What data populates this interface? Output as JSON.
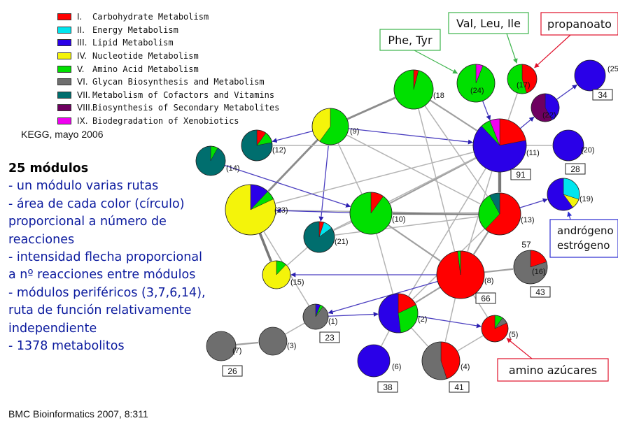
{
  "legend": [
    {
      "num": "I.",
      "label": "Carbohydrate Metabolism",
      "color": "#ff0000"
    },
    {
      "num": "II.",
      "label": "Energy Metabolism",
      "color": "#00e5ee"
    },
    {
      "num": "III.",
      "label": "Lipid Metabolism",
      "color": "#2a00e8"
    },
    {
      "num": "IV.",
      "label": "Nucleotide Metabolism",
      "color": "#f4f40a"
    },
    {
      "num": "V.",
      "label": "Amino Acid Metabolism",
      "color": "#00e000"
    },
    {
      "num": "VI.",
      "label": "Glycan Biosynthesis and Metabolism",
      "color": "#6e6e6e"
    },
    {
      "num": "VII.",
      "label": "Metabolism of Cofactors and Vitamins",
      "color": "#006e6e"
    },
    {
      "num": "VIII.",
      "label": "Biosynthesis of Secondary Metabolites",
      "color": "#6e0060"
    },
    {
      "num": "IX.",
      "label": "Biodegradation of Xenobiotics",
      "color": "#f000f0"
    }
  ],
  "source_note": "KEGG, mayo 2006",
  "summary_title": "25 módulos",
  "summary_lines": [
    "- un módulo varias rutas",
    "- área de cada color (círculo)",
    "proporcional a número de",
    "reacciones",
    "- intensidad flecha proporcional",
    "a nº reacciones entre módulos",
    "- módulos periféricos (3,7,6,14),",
    "ruta de función relativamente",
    "independiente",
    "- 1378 metabolitos"
  ],
  "citation": "BMC Bioinformatics 2007, 8:311",
  "nodes": [
    {
      "id": "25",
      "label": "(25",
      "count": "34",
      "slices": [
        [
          "III",
          100
        ]
      ]
    },
    {
      "id": "24",
      "label": "(24)",
      "count": "",
      "slices": [
        [
          "IX",
          6
        ],
        [
          "V",
          94
        ]
      ]
    },
    {
      "id": "17",
      "label": "(17)",
      "count": "",
      "slices": [
        [
          "I",
          45
        ],
        [
          "V",
          55
        ]
      ]
    },
    {
      "id": "22",
      "label": "(22)",
      "count": "",
      "slices": [
        [
          "III",
          42
        ],
        [
          "VIII",
          58
        ]
      ]
    },
    {
      "id": "18",
      "label": "(18",
      "count": "",
      "slices": [
        [
          "I",
          4
        ],
        [
          "V",
          96
        ]
      ]
    },
    {
      "id": "9",
      "label": "(9)",
      "count": "",
      "slices": [
        [
          "V",
          60
        ],
        [
          "IV",
          40
        ]
      ]
    },
    {
      "id": "11",
      "label": "(11)",
      "count": "91",
      "slices": [
        [
          "I",
          22
        ],
        [
          "III",
          66
        ],
        [
          "V",
          6
        ],
        [
          "IX",
          6
        ]
      ]
    },
    {
      "id": "20",
      "label": "(20)",
      "count": "28",
      "slices": [
        [
          "III",
          100
        ]
      ]
    },
    {
      "id": "12",
      "label": "(12)",
      "count": "",
      "slices": [
        [
          "I",
          10
        ],
        [
          "V",
          12
        ],
        [
          "VII",
          78
        ]
      ]
    },
    {
      "id": "14",
      "label": "(14)",
      "count": "",
      "slices": [
        [
          "V",
          8
        ],
        [
          "VII",
          92
        ]
      ]
    },
    {
      "id": "19",
      "label": "(19)",
      "count": "",
      "slices": [
        [
          "II",
          30
        ],
        [
          "IV",
          10
        ],
        [
          "III",
          60
        ]
      ]
    },
    {
      "id": "23",
      "label": "(23)",
      "count": "",
      "slices": [
        [
          "III",
          12
        ],
        [
          "V",
          6
        ],
        [
          "IV",
          82
        ]
      ]
    },
    {
      "id": "10",
      "label": "(10)",
      "count": "",
      "slices": [
        [
          "I",
          10
        ],
        [
          "V",
          90
        ]
      ]
    },
    {
      "id": "13",
      "label": "(13)",
      "count": "",
      "slices": [
        [
          "I",
          62
        ],
        [
          "V",
          30
        ],
        [
          "VII",
          8
        ]
      ]
    },
    {
      "id": "21",
      "label": "(21)",
      "count": "",
      "slices": [
        [
          "I",
          5
        ],
        [
          "II",
          10
        ],
        [
          "VII",
          85
        ]
      ]
    },
    {
      "id": "15",
      "label": "(15)",
      "count": "",
      "slices": [
        [
          "V",
          12
        ],
        [
          "IV",
          88
        ]
      ]
    },
    {
      "id": "8",
      "label": "(8)",
      "count": "66",
      "slices": [
        [
          "I",
          98
        ],
        [
          "V",
          2
        ]
      ]
    },
    {
      "id": "16",
      "label": "(16)",
      "count": "43",
      "top_count": "57",
      "slices": [
        [
          "I",
          20
        ],
        [
          "VI",
          80
        ]
      ]
    },
    {
      "id": "1",
      "label": "(1)",
      "count": "23",
      "slices": [
        [
          "III",
          6
        ],
        [
          "V",
          4
        ],
        [
          "VI",
          90
        ]
      ]
    },
    {
      "id": "2",
      "label": "(2)",
      "count": "",
      "slices": [
        [
          "I",
          18
        ],
        [
          "V",
          30
        ],
        [
          "III",
          52
        ]
      ]
    },
    {
      "id": "5",
      "label": "(5)",
      "count": "",
      "slices": [
        [
          "V",
          10
        ],
        [
          "VI",
          8
        ],
        [
          "I",
          82
        ]
      ]
    },
    {
      "id": "3",
      "label": "(3)",
      "count": "",
      "slices": [
        [
          "VI",
          100
        ]
      ]
    },
    {
      "id": "7",
      "label": "(7)",
      "count": "26",
      "slices": [
        [
          "VI",
          100
        ]
      ]
    },
    {
      "id": "6",
      "label": "(6)",
      "count": "38",
      "slices": [
        [
          "III",
          100
        ]
      ]
    },
    {
      "id": "4",
      "label": "(4)",
      "count": "41",
      "slices": [
        [
          "I",
          45
        ],
        [
          "VI",
          55
        ]
      ]
    }
  ],
  "edges": [
    {
      "from": "9",
      "to": "11",
      "weight": 2,
      "arrow": true
    },
    {
      "from": "9",
      "to": "18",
      "weight": 3,
      "arrow": false
    },
    {
      "from": "9",
      "to": "12",
      "weight": 2,
      "arrow": true
    },
    {
      "from": "9",
      "to": "23",
      "weight": 3,
      "arrow": false
    },
    {
      "from": "9",
      "to": "21",
      "weight": 2,
      "arrow": true
    },
    {
      "from": "9",
      "to": "10",
      "weight": 1,
      "arrow": false
    },
    {
      "from": "9",
      "to": "13",
      "weight": 1,
      "arrow": false
    },
    {
      "from": "18",
      "to": "11",
      "weight": 2,
      "arrow": false
    },
    {
      "from": "18",
      "to": "13",
      "weight": 1,
      "arrow": false
    },
    {
      "from": "18",
      "to": "8",
      "weight": 1,
      "arrow": false
    },
    {
      "from": "24",
      "to": "11",
      "weight": 2,
      "arrow": true
    },
    {
      "from": "17",
      "to": "11",
      "weight": 1,
      "arrow": false
    },
    {
      "from": "22",
      "to": "25",
      "weight": 1,
      "arrow": true
    },
    {
      "from": "11",
      "to": "22",
      "weight": 1,
      "arrow": true
    },
    {
      "from": "11",
      "to": "20",
      "weight": 1,
      "arrow": false
    },
    {
      "from": "11",
      "to": "13",
      "weight": 5,
      "arrow": false
    },
    {
      "from": "11",
      "to": "10",
      "weight": 2,
      "arrow": false
    },
    {
      "from": "11",
      "to": "12",
      "weight": 1,
      "arrow": false
    },
    {
      "from": "11",
      "to": "23",
      "weight": 1,
      "arrow": false
    },
    {
      "from": "11",
      "to": "21",
      "weight": 1,
      "arrow": false
    },
    {
      "from": "11",
      "to": "8",
      "weight": 1,
      "arrow": false
    },
    {
      "from": "11",
      "to": "2",
      "weight": 1,
      "arrow": false
    },
    {
      "from": "14",
      "to": "10",
      "weight": 2,
      "arrow": true
    },
    {
      "from": "13",
      "to": "19",
      "weight": 1,
      "arrow": true
    },
    {
      "from": "13",
      "to": "10",
      "weight": 4,
      "arrow": false
    },
    {
      "from": "13",
      "to": "8",
      "weight": 2,
      "arrow": false
    },
    {
      "from": "13",
      "to": "21",
      "weight": 1,
      "arrow": false
    },
    {
      "from": "13",
      "to": "23",
      "weight": 1,
      "arrow": false
    },
    {
      "from": "13",
      "to": "2",
      "weight": 1,
      "arrow": false
    },
    {
      "from": "10",
      "to": "23",
      "weight": 2,
      "arrow": true
    },
    {
      "from": "10",
      "to": "21",
      "weight": 1,
      "arrow": false
    },
    {
      "from": "10",
      "to": "8",
      "weight": 2,
      "arrow": false
    },
    {
      "from": "10",
      "to": "2",
      "weight": 1,
      "arrow": false
    },
    {
      "from": "23",
      "to": "15",
      "weight": 4,
      "arrow": false
    },
    {
      "from": "8",
      "to": "15",
      "weight": 2,
      "arrow": true
    },
    {
      "from": "8",
      "to": "16",
      "weight": 2,
      "arrow": false
    },
    {
      "from": "8",
      "to": "1",
      "weight": 1,
      "arrow": true
    },
    {
      "from": "8",
      "to": "2",
      "weight": 2,
      "arrow": false
    },
    {
      "from": "8",
      "to": "5",
      "weight": 1,
      "arrow": false
    },
    {
      "from": "8",
      "to": "4",
      "weight": 1,
      "arrow": false
    },
    {
      "from": "1",
      "to": "2",
      "weight": 2,
      "arrow": true
    },
    {
      "from": "1",
      "to": "3",
      "weight": 1,
      "arrow": false
    },
    {
      "from": "1",
      "to": "23",
      "weight": 1,
      "arrow": false
    },
    {
      "from": "2",
      "to": "5",
      "weight": 2,
      "arrow": true
    },
    {
      "from": "2",
      "to": "6",
      "weight": 1,
      "arrow": false
    },
    {
      "from": "2",
      "to": "4",
      "weight": 1,
      "arrow": false
    },
    {
      "from": "7",
      "to": "3",
      "weight": 2,
      "arrow": false
    },
    {
      "from": "5",
      "to": "4",
      "weight": 1,
      "arrow": false
    },
    {
      "from": "21",
      "to": "15",
      "weight": 1,
      "arrow": false
    }
  ],
  "callouts": [
    {
      "id": "phe-tyr",
      "text": "Phe, Tyr",
      "border": "#3cb44b",
      "target": "24"
    },
    {
      "id": "val-leu-ile",
      "text": "Val, Leu, Ile",
      "border": "#3cb44b",
      "target": "17"
    },
    {
      "id": "propanoato",
      "text": "propanoato",
      "border": "#e0102a",
      "target": "17"
    },
    {
      "id": "androgeno",
      "lines": [
        "andrógeno",
        "estrógeno"
      ],
      "border": "#2a2ad0",
      "target": "19"
    },
    {
      "id": "amino-azucares",
      "text": "amino azúcares",
      "border": "#e0102a",
      "target": "5"
    }
  ]
}
